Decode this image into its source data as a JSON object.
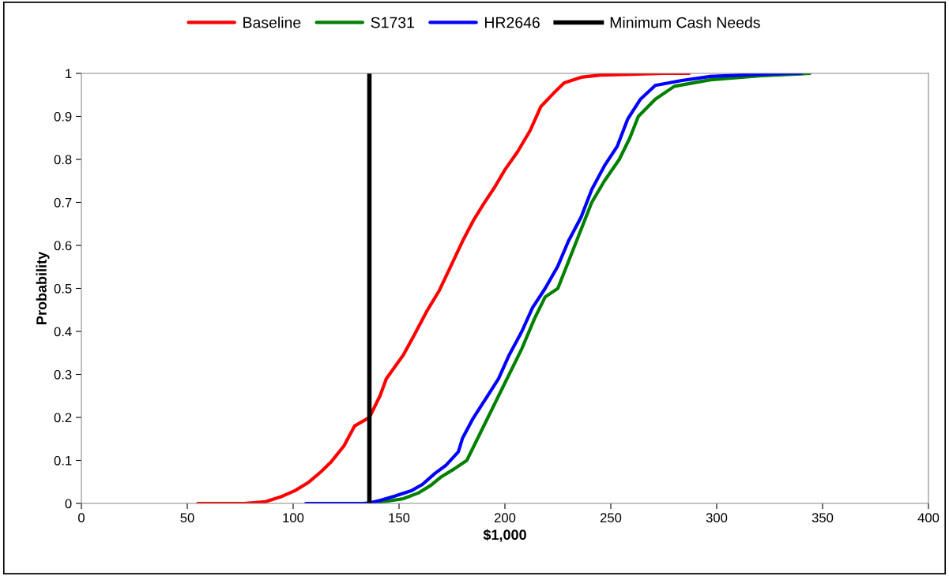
{
  "chart_data": {
    "type": "line",
    "xlabel": "$1,000",
    "ylabel": "Probability",
    "xlim": [
      0,
      400
    ],
    "xticks": [
      0,
      50,
      100,
      150,
      200,
      250,
      300,
      350,
      400
    ],
    "ylim": [
      0,
      1
    ],
    "yticks": [
      0,
      0.1,
      0.2,
      0.3,
      0.4,
      0.5,
      0.6,
      0.7,
      0.8,
      0.9,
      1
    ],
    "grid": false,
    "legend": "top",
    "marker": "none",
    "line_style": "solid",
    "series": [
      {
        "name": "Baseline",
        "color": "#ff0000",
        "x": [
          55,
          68,
          77,
          87,
          94,
          101,
          107,
          113,
          118,
          124,
          129,
          136,
          141,
          144,
          152,
          157,
          163,
          169,
          174,
          180,
          185,
          190,
          195,
          200,
          206,
          212,
          217,
          223,
          228,
          236,
          245,
          260,
          275,
          287
        ],
        "values": [
          0,
          0,
          0,
          0.004,
          0.015,
          0.03,
          0.048,
          0.073,
          0.097,
          0.134,
          0.18,
          0.2,
          0.25,
          0.29,
          0.345,
          0.39,
          0.446,
          0.495,
          0.547,
          0.61,
          0.657,
          0.697,
          0.734,
          0.776,
          0.818,
          0.868,
          0.923,
          0.954,
          0.978,
          0.991,
          0.996,
          0.998,
          1,
          1
        ]
      },
      {
        "name": "S1731",
        "color": "#008000",
        "x": [
          133,
          144,
          152,
          159,
          165,
          170,
          176,
          182,
          187,
          192,
          197,
          202,
          208,
          214,
          219,
          225,
          229,
          233,
          237,
          241,
          247,
          254,
          259,
          263,
          271,
          280,
          297,
          320,
          344
        ],
        "values": [
          0,
          0.005,
          0.011,
          0.024,
          0.042,
          0.062,
          0.08,
          0.1,
          0.15,
          0.2,
          0.25,
          0.3,
          0.36,
          0.43,
          0.48,
          0.5,
          0.55,
          0.6,
          0.65,
          0.7,
          0.75,
          0.8,
          0.85,
          0.9,
          0.94,
          0.97,
          0.985,
          0.994,
          1
        ]
      },
      {
        "name": "HR2646",
        "color": "#0000ff",
        "x": [
          106,
          122,
          135,
          141,
          148,
          156,
          161,
          167,
          172,
          178,
          180,
          185,
          191,
          197,
          202,
          208,
          213,
          219,
          225,
          230,
          236,
          241,
          247,
          253,
          258,
          264,
          271,
          283,
          297,
          320,
          335,
          340
        ],
        "values": [
          0,
          0,
          0,
          0.007,
          0.017,
          0.03,
          0.044,
          0.07,
          0.088,
          0.12,
          0.152,
          0.198,
          0.244,
          0.29,
          0.345,
          0.4,
          0.455,
          0.5,
          0.552,
          0.61,
          0.666,
          0.73,
          0.785,
          0.83,
          0.894,
          0.94,
          0.972,
          0.983,
          0.993,
          0.998,
          1,
          1
        ]
      }
    ],
    "ref_lines": [
      {
        "axis": "x",
        "value": 136,
        "label": "Minimum Cash Needs",
        "color": "#000000",
        "line_style": "solid"
      }
    ]
  }
}
